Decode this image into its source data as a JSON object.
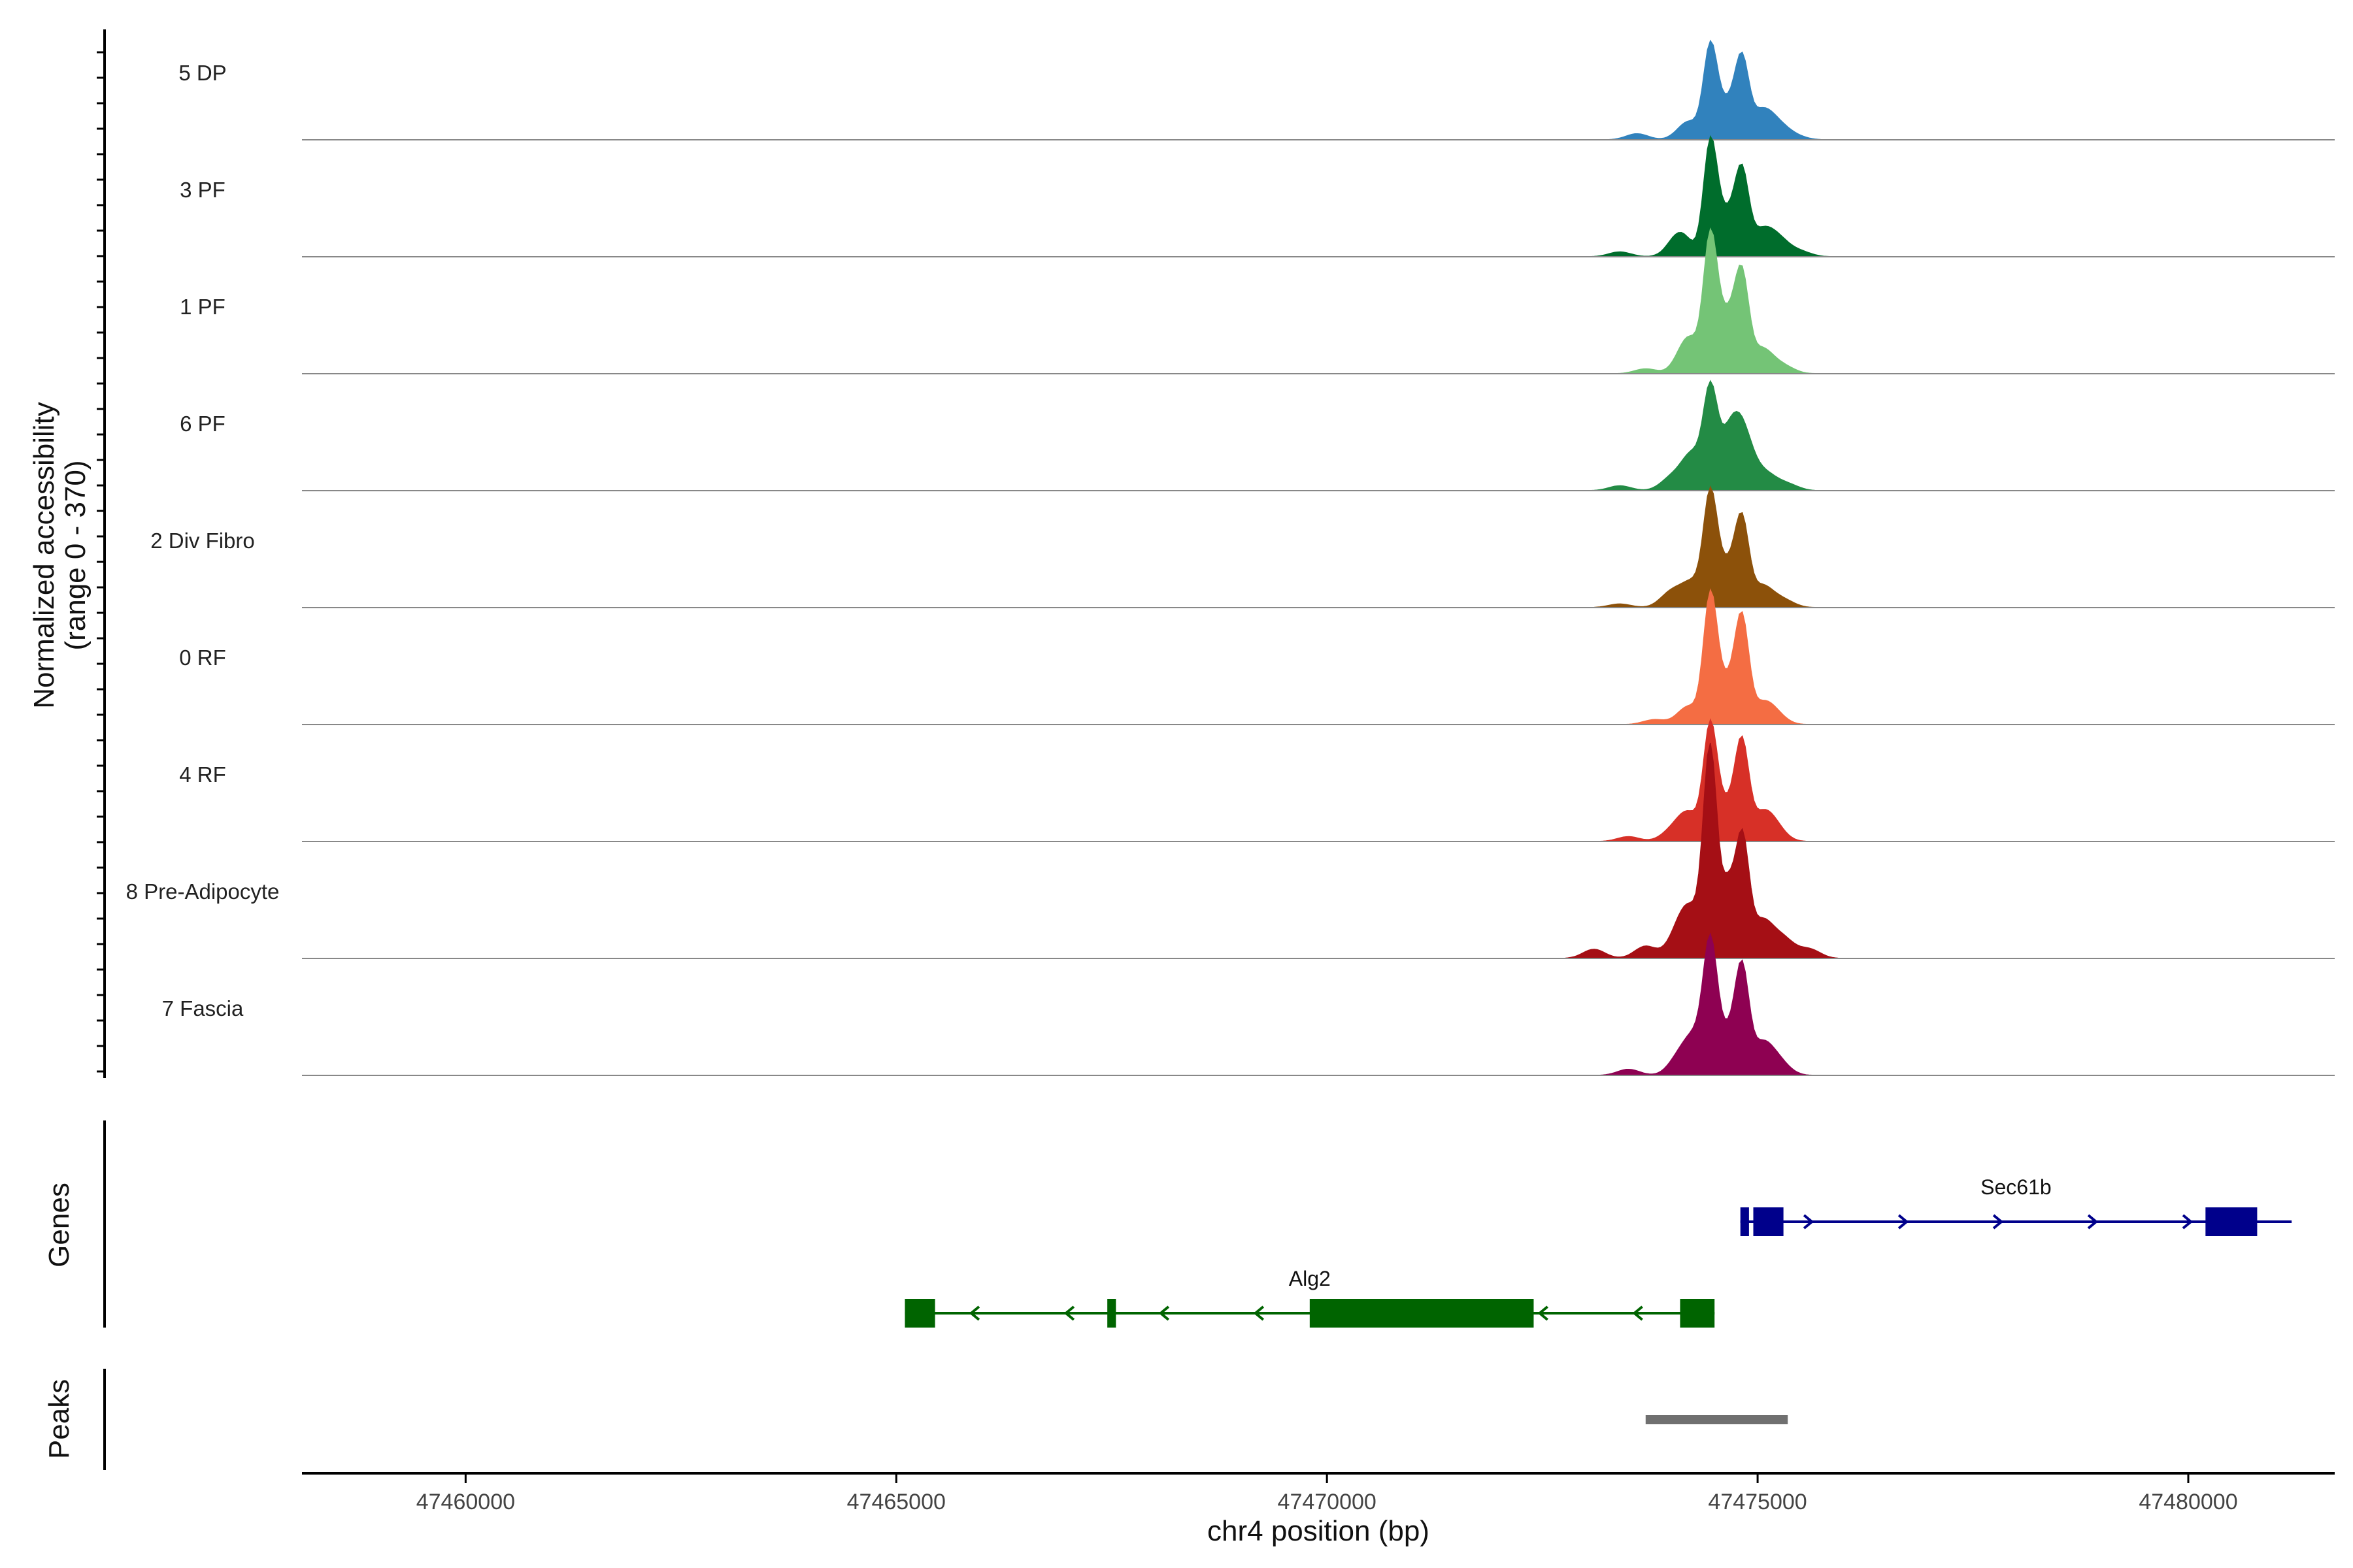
{
  "chart_data": {
    "type": "area",
    "title": "",
    "ylabel": "Normalized accessibility",
    "ylabel_range": "(range 0 - 370)",
    "yrange": [
      0,
      370
    ],
    "xlabel": "chr4 position (bp)",
    "xlim": [
      47458100,
      47481700
    ],
    "xticks": [
      47460000,
      47465000,
      47470000,
      47475000,
      47480000
    ],
    "tracks": [
      {
        "name": "5 DP",
        "color": "#3182BD",
        "peaks": [
          [
            47473600,
            10
          ],
          [
            47474200,
            30
          ],
          [
            47474450,
            140
          ],
          [
            47474650,
            60
          ],
          [
            47474820,
            110
          ],
          [
            47475050,
            45
          ],
          [
            47475250,
            20
          ],
          [
            47475450,
            5
          ]
        ]
      },
      {
        "name": "3 PF",
        "color": "#006D2C",
        "peaks": [
          [
            47473400,
            8
          ],
          [
            47474100,
            40
          ],
          [
            47474450,
            175
          ],
          [
            47474650,
            70
          ],
          [
            47474820,
            115
          ],
          [
            47475050,
            40
          ],
          [
            47475250,
            25
          ],
          [
            47475500,
            8
          ]
        ]
      },
      {
        "name": "1 PF",
        "color": "#74C476",
        "peaks": [
          [
            47473700,
            8
          ],
          [
            47474200,
            60
          ],
          [
            47474450,
            200
          ],
          [
            47474650,
            95
          ],
          [
            47474820,
            130
          ],
          [
            47475050,
            40
          ],
          [
            47475300,
            12
          ]
        ]
      },
      {
        "name": "6 PF",
        "color": "#238B45",
        "peaks": [
          [
            47473400,
            8
          ],
          [
            47474000,
            20
          ],
          [
            47474250,
            60
          ],
          [
            47474450,
            140
          ],
          [
            47474650,
            70
          ],
          [
            47474820,
            90
          ],
          [
            47475100,
            25
          ],
          [
            47475350,
            10
          ]
        ]
      },
      {
        "name": "2 Div Fibro",
        "color": "#8C510A",
        "peaks": [
          [
            47473400,
            6
          ],
          [
            47474000,
            25
          ],
          [
            47474250,
            40
          ],
          [
            47474450,
            165
          ],
          [
            47474650,
            70
          ],
          [
            47474820,
            120
          ],
          [
            47475050,
            35
          ],
          [
            47475300,
            12
          ]
        ]
      },
      {
        "name": "0 RF",
        "color": "#F46D43",
        "peaks": [
          [
            47473800,
            8
          ],
          [
            47474200,
            30
          ],
          [
            47474450,
            195
          ],
          [
            47474650,
            70
          ],
          [
            47474820,
            150
          ],
          [
            47475050,
            30
          ],
          [
            47475200,
            15
          ]
        ]
      },
      {
        "name": "4 RF",
        "color": "#D73027",
        "peaks": [
          [
            47473500,
            8
          ],
          [
            47474000,
            15
          ],
          [
            47474200,
            45
          ],
          [
            47474450,
            175
          ],
          [
            47474650,
            60
          ],
          [
            47474820,
            140
          ],
          [
            47475050,
            40
          ],
          [
            47475200,
            20
          ]
        ]
      },
      {
        "name": "8 Pre-Adipocyte",
        "color": "#A50F15",
        "peaks": [
          [
            47473100,
            15
          ],
          [
            47473700,
            20
          ],
          [
            47474100,
            45
          ],
          [
            47474250,
            60
          ],
          [
            47474450,
            330
          ],
          [
            47474650,
            110
          ],
          [
            47474820,
            190
          ],
          [
            47475050,
            60
          ],
          [
            47475300,
            30
          ],
          [
            47475600,
            15
          ]
        ]
      },
      {
        "name": "7 Fascia",
        "color": "#8E0152",
        "peaks": [
          [
            47473500,
            10
          ],
          [
            47474100,
            30
          ],
          [
            47474300,
            60
          ],
          [
            47474450,
            180
          ],
          [
            47474650,
            70
          ],
          [
            47474820,
            150
          ],
          [
            47475050,
            50
          ],
          [
            47475250,
            20
          ]
        ]
      }
    ],
    "genes_label": "Genes",
    "genes": [
      {
        "name": "Sec61b",
        "strand": "+",
        "start": 47474800,
        "end": 47481200,
        "exons": [
          [
            47474800,
            47474900
          ],
          [
            47474950,
            47475300
          ],
          [
            47480200,
            47480800
          ]
        ],
        "color": "#00008B"
      },
      {
        "name": "Alg2",
        "strand": "-",
        "start": 47465100,
        "end": 47474500,
        "exons": [
          [
            47465100,
            47465450
          ],
          [
            47467450,
            47467550
          ],
          [
            47469800,
            47472400
          ],
          [
            47474100,
            47474500
          ]
        ],
        "color": "#006400"
      }
    ],
    "peaks_label": "Peaks",
    "peak_regions": [
      {
        "start": 47473700,
        "end": 47475350,
        "color": "#707070"
      }
    ]
  }
}
